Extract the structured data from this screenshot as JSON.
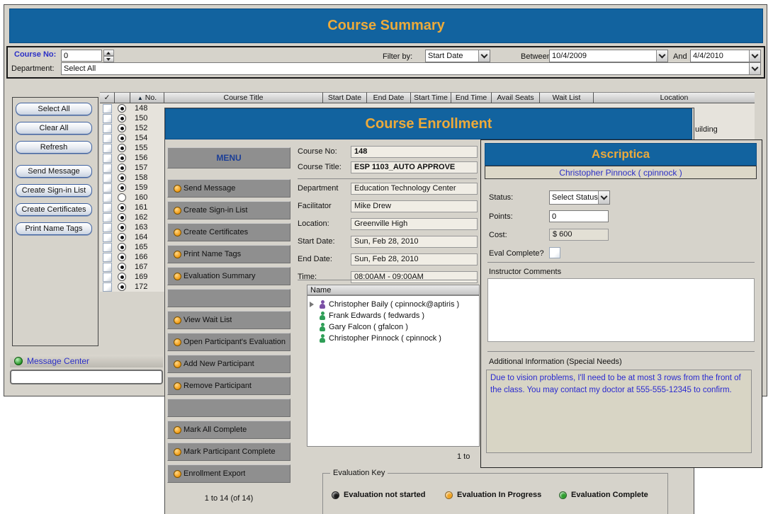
{
  "colors": {
    "title_bar_blue": "#12639f",
    "title_gold": "#ecaa3a",
    "window_gray": "#d6d3cb",
    "menu_gray": "#8f8f8f",
    "link_blue": "#2b2fc6",
    "bullet_orange": "#f09a12",
    "eval_not_started": "#1a1a1a",
    "eval_in_progress": "#f0a322",
    "eval_complete": "#2f9e2f"
  },
  "course_summary": {
    "title": "Course Summary",
    "filter": {
      "course_no_label": "Course No:",
      "course_no_value": "0",
      "filter_by_label": "Filter by:",
      "filter_by_value": "Start Date",
      "between_label": "Between",
      "between_value": "10/4/2009",
      "and_label": "And",
      "and_value": "4/4/2010",
      "department_label": "Department:",
      "department_value": "Select All"
    },
    "actions": [
      "Select All",
      "Clear All",
      "Refresh",
      "Send Message",
      "Create Sign-in List",
      "Create Certificates",
      "Print Name Tags"
    ],
    "table": {
      "check_header": "✓",
      "sort_icon": "▲",
      "no_header": "No.",
      "headers": [
        "Course Title",
        "Start Date",
        "End Date",
        "Start Time",
        "End Time",
        "Avail Seats",
        "Wait List",
        "Location"
      ],
      "rows": [
        {
          "no": "148",
          "radio": true
        },
        {
          "no": "150",
          "radio": true
        },
        {
          "no": "152",
          "radio": true
        },
        {
          "no": "154",
          "radio": true
        },
        {
          "no": "155",
          "radio": true
        },
        {
          "no": "156",
          "radio": true
        },
        {
          "no": "157",
          "radio": true
        },
        {
          "no": "158",
          "radio": true
        },
        {
          "no": "159",
          "radio": true
        },
        {
          "no": "160",
          "radio": false
        },
        {
          "no": "161",
          "radio": true
        },
        {
          "no": "162",
          "radio": true
        },
        {
          "no": "163",
          "radio": true
        },
        {
          "no": "164",
          "radio": true
        },
        {
          "no": "165",
          "radio": true
        },
        {
          "no": "166",
          "radio": true
        },
        {
          "no": "167",
          "radio": true
        },
        {
          "no": "169",
          "radio": true
        },
        {
          "no": "172",
          "radio": true
        }
      ],
      "location_fragment": "uilding"
    },
    "message_center": {
      "label": "Message Center",
      "input_value": ""
    }
  },
  "course_enrollment": {
    "title": "Course Enrollment",
    "menu_title": "MENU",
    "menu_items": [
      "Send Message",
      "Create Sign-in List",
      "Create Certificates",
      "Print Name Tags",
      "Evaluation Summary",
      "",
      "View Wait List",
      "Open Participant's Evaluation",
      "Add New Participant",
      "Remove Participant",
      "",
      "Mark All Complete",
      "Mark Participant Complete",
      "Enrollment Export"
    ],
    "menu_pagination": "1 to 14 (of 14)",
    "details": [
      {
        "label": "Course No:",
        "value": "148",
        "bold": true
      },
      {
        "label": "Course Title:",
        "value": "ESP 1103_AUTO APPROVE",
        "bold": true
      },
      {
        "label": "Department",
        "value": "Education Technology Center",
        "bold": false
      },
      {
        "label": "Facilitator",
        "value": "Mike Drew",
        "bold": false
      },
      {
        "label": "Location:",
        "value": "Greenville High",
        "bold": false
      },
      {
        "label": "Start Date:",
        "value": "Sun, Feb 28, 2010",
        "bold": false
      },
      {
        "label": "End Date:",
        "value": "Sun, Feb 28, 2010",
        "bold": false
      },
      {
        "label": "Time:",
        "value": "08:00AM - 09:00AM",
        "bold": false
      }
    ],
    "participants": {
      "header": "Name",
      "rows": [
        {
          "name": "Christopher Baily ( cpinnock@aptiris )",
          "icon": "purple-person-icon",
          "expanded_marker": true
        },
        {
          "name": "Frank Edwards ( fedwards )",
          "icon": "green-person-icon",
          "expanded_marker": false
        },
        {
          "name": "Gary Falcon ( gfalcon )",
          "icon": "green-person-icon",
          "expanded_marker": false
        },
        {
          "name": "Christopher Pinnock ( cpinnock )",
          "icon": "green-person-icon",
          "expanded_marker": false
        }
      ]
    },
    "list_pagination": "1 to",
    "evaluation_key": {
      "legend": "Evaluation Key",
      "items": [
        {
          "label": "Evaluation not started",
          "color": "#1a1a1a"
        },
        {
          "label": "Evaluation In Progress",
          "color": "#f0a322"
        },
        {
          "label": "Evaluation Complete",
          "color": "#2f9e2f"
        }
      ]
    }
  },
  "ascriptica": {
    "title": "Ascriptica",
    "participant": "Christopher Pinnock ( cpinnock )",
    "fields": {
      "status_label": "Status:",
      "status_value": "Select Status",
      "points_label": "Points:",
      "points_value": "0",
      "cost_label": "Cost:",
      "cost_value": "$ 600",
      "eval_label": "Eval Complete?"
    },
    "instructor_comments_label": "Instructor Comments",
    "instructor_comments_value": "",
    "additional_info_label": "Additional Information (Special Needs)",
    "additional_info_text": "Due to vision problems, I'll need to be at most 3 rows from the front of the class. You may contact my doctor at 555-555-12345 to confirm."
  }
}
